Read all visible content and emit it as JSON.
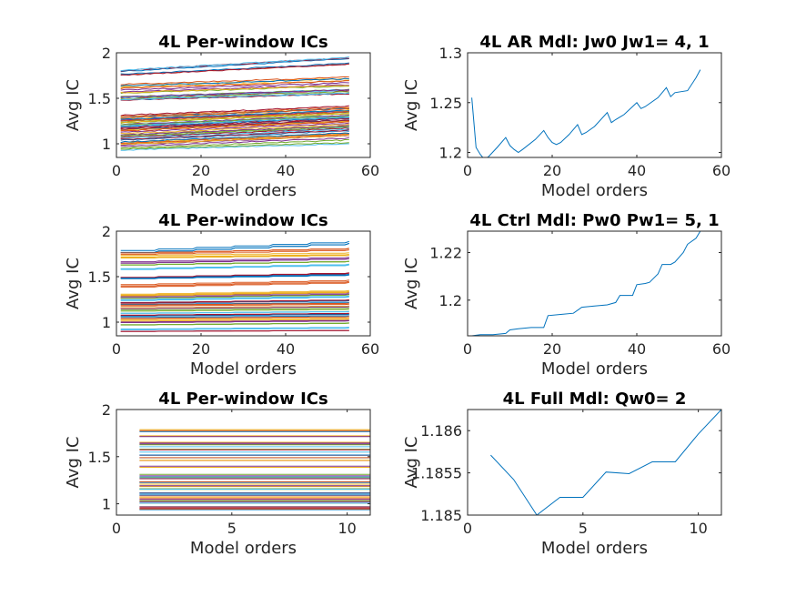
{
  "colors": [
    "#0072bd",
    "#d95319",
    "#edb120",
    "#7e2f8e",
    "#77ac30",
    "#4dbeee",
    "#a2142f"
  ],
  "chart_data": [
    {
      "type": "line",
      "title": "4L Per-window ICs",
      "xlabel": "Model orders",
      "ylabel": "Avg IC",
      "xlim": [
        0,
        60
      ],
      "ylim": [
        0.85,
        2
      ],
      "xticks": [
        0,
        20,
        40,
        60
      ],
      "yticks": [
        1,
        1.5,
        2
      ],
      "x_range": [
        1,
        55
      ],
      "series_count": 70,
      "series_pattern": "rising",
      "start_levels": [
        1.81,
        1.76,
        1.64,
        1.6,
        1.56,
        1.52,
        1.5,
        1.48,
        1.3,
        1.28,
        1.26,
        1.24,
        1.22,
        1.2,
        1.18,
        1.16,
        1.14,
        1.12,
        1.1,
        1.08,
        1.06,
        1.04,
        1.02,
        1.0,
        0.98,
        0.96,
        0.93
      ],
      "end_levels": [
        1.95,
        1.88,
        1.72,
        1.68,
        1.64,
        1.6,
        1.58,
        1.55,
        1.4,
        1.38,
        1.36,
        1.34,
        1.32,
        1.3,
        1.28,
        1.26,
        1.24,
        1.22,
        1.2,
        1.18,
        1.16,
        1.14,
        1.12,
        1.1,
        1.08,
        1.05,
        1.0
      ]
    },
    {
      "type": "line",
      "title": "4L AR Mdl: Jw0 Jw1= 4, 1",
      "xlabel": "Model orders",
      "ylabel": "Avg IC",
      "xlim": [
        0,
        60
      ],
      "ylim": [
        1.195,
        1.3
      ],
      "xticks": [
        0,
        20,
        40,
        60
      ],
      "yticks": [
        1.2,
        1.25,
        1.3
      ],
      "series": [
        {
          "x": [
            1,
            2,
            3,
            4,
            5,
            7,
            9,
            10,
            11,
            12,
            13,
            16,
            18,
            19,
            20,
            21,
            22,
            24,
            26,
            27,
            28,
            30,
            33,
            34,
            35,
            37,
            40,
            41,
            42,
            45,
            47,
            48,
            49,
            52,
            54,
            55
          ],
          "values": [
            1.255,
            1.205,
            1.198,
            1.193,
            1.196,
            1.205,
            1.215,
            1.207,
            1.203,
            1.2,
            1.203,
            1.213,
            1.222,
            1.215,
            1.21,
            1.208,
            1.21,
            1.218,
            1.228,
            1.218,
            1.22,
            1.226,
            1.24,
            1.23,
            1.233,
            1.238,
            1.25,
            1.244,
            1.246,
            1.255,
            1.265,
            1.256,
            1.26,
            1.262,
            1.275,
            1.283
          ]
        }
      ]
    },
    {
      "type": "line",
      "title": "4L Per-window ICs",
      "xlabel": "Model orders",
      "ylabel": "Avg IC",
      "xlim": [
        0,
        60
      ],
      "ylim": [
        0.85,
        2
      ],
      "xticks": [
        0,
        20,
        40,
        60
      ],
      "yticks": [
        1,
        1.5,
        2
      ],
      "x_range": [
        1,
        55
      ],
      "series_count": 70,
      "series_pattern": "stepped",
      "start_levels": [
        1.78,
        1.75,
        1.72,
        1.65,
        1.62,
        1.58,
        1.5,
        1.48,
        1.4,
        1.3,
        1.28,
        1.26,
        1.24,
        1.22,
        1.2,
        1.18,
        1.16,
        1.14,
        1.12,
        1.1,
        1.08,
        1.06,
        1.04,
        1.02,
        1.0,
        0.97,
        0.93,
        0.89
      ],
      "end_levels": [
        1.88,
        1.8,
        1.75,
        1.7,
        1.66,
        1.63,
        1.55,
        1.52,
        1.45,
        1.34,
        1.32,
        1.3,
        1.28,
        1.25,
        1.22,
        1.2,
        1.18,
        1.16,
        1.14,
        1.12,
        1.1,
        1.08,
        1.06,
        1.04,
        1.02,
        0.99,
        0.95,
        0.9
      ]
    },
    {
      "type": "line",
      "title": "4L Ctrl Mdl: Pw0 Pw1= 5, 1",
      "xlabel": "Model orders",
      "ylabel": "Avg IC",
      "xlim": [
        0,
        60
      ],
      "ylim": [
        1.185,
        1.229
      ],
      "xticks": [
        0,
        20,
        40,
        60
      ],
      "yticks": [
        1.2,
        1.22
      ],
      "series": [
        {
          "x": [
            1,
            3,
            6,
            9,
            10,
            12,
            15,
            18,
            19,
            22,
            25,
            27,
            30,
            33,
            35,
            36,
            39,
            40,
            42,
            43,
            45,
            46,
            48,
            49,
            51,
            52,
            54,
            55
          ],
          "values": [
            1.185,
            1.1855,
            1.1855,
            1.186,
            1.1875,
            1.188,
            1.1885,
            1.1885,
            1.1935,
            1.194,
            1.1945,
            1.197,
            1.1975,
            1.198,
            1.199,
            1.202,
            1.202,
            1.2065,
            1.207,
            1.2075,
            1.211,
            1.215,
            1.215,
            1.216,
            1.22,
            1.2235,
            1.226,
            1.229
          ]
        }
      ]
    },
    {
      "type": "line",
      "title": "4L Per-window ICs",
      "xlabel": "Model orders",
      "ylabel": "Avg IC",
      "xlim": [
        0,
        11
      ],
      "ylim": [
        0.88,
        2
      ],
      "xticks": [
        0,
        5,
        10
      ],
      "yticks": [
        1,
        1.5,
        2
      ],
      "x_range": [
        1,
        11
      ],
      "series_count": 60,
      "series_pattern": "flat",
      "start_levels": [
        1.78,
        1.72,
        1.65,
        1.62,
        1.59,
        1.56,
        1.52,
        1.5,
        1.45,
        1.4,
        1.31,
        1.28,
        1.26,
        1.24,
        1.22,
        1.2,
        1.18,
        1.16,
        1.14,
        1.12,
        1.1,
        1.08,
        1.06,
        1.04,
        1.02,
        1.0,
        0.98,
        0.95,
        0.93
      ],
      "end_levels": [
        1.78,
        1.72,
        1.65,
        1.62,
        1.59,
        1.56,
        1.52,
        1.5,
        1.45,
        1.4,
        1.31,
        1.28,
        1.26,
        1.24,
        1.22,
        1.2,
        1.18,
        1.16,
        1.14,
        1.12,
        1.1,
        1.08,
        1.06,
        1.04,
        1.02,
        1.0,
        0.98,
        0.95,
        0.93
      ]
    },
    {
      "type": "line",
      "title": "4L Full Mdl: Qw0= 2",
      "xlabel": "Model orders",
      "ylabel": "Avg IC",
      "xlim": [
        0,
        11
      ],
      "ylim": [
        1.185,
        1.18625
      ],
      "xticks": [
        0,
        5,
        10
      ],
      "yticks": [
        1.185,
        1.1855,
        1.186
      ],
      "series": [
        {
          "x": [
            1,
            2,
            3,
            4,
            5,
            6,
            7,
            8,
            9,
            10,
            11
          ],
          "values": [
            1.18571,
            1.18542,
            1.185,
            1.18521,
            1.18521,
            1.18551,
            1.18549,
            1.18563,
            1.18563,
            1.18596,
            1.18625
          ]
        }
      ]
    }
  ]
}
